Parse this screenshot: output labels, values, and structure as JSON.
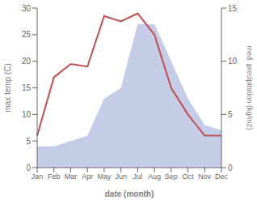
{
  "chart_data": {
    "type": "line",
    "xlabel": "date (month)",
    "ylabel": "max temp (C)",
    "y2label": "med. precipitation (kg/m2)",
    "categories": [
      "Jan",
      "Feb",
      "Mar",
      "Apr",
      "May",
      "Jun",
      "Jul",
      "Aug",
      "Sep",
      "Oct",
      "Nov",
      "Dec"
    ],
    "series": [
      {
        "type": "area",
        "color": "#c5cce8",
        "values": [
          4,
          4,
          5,
          6,
          13,
          15,
          27,
          27,
          20,
          13,
          8,
          7
        ]
      },
      {
        "type": "line",
        "color": "#c0504d",
        "values": [
          6,
          17,
          19.5,
          19,
          28.5,
          27.5,
          29,
          25,
          15,
          10,
          6,
          6
        ]
      }
    ],
    "ylim": [
      0,
      30
    ],
    "yticks": [
      0,
      5,
      10,
      15,
      20,
      25,
      30
    ],
    "y2lim": [
      0,
      15
    ],
    "y2ticks": [
      0,
      5,
      10,
      15
    ],
    "grid": false
  }
}
